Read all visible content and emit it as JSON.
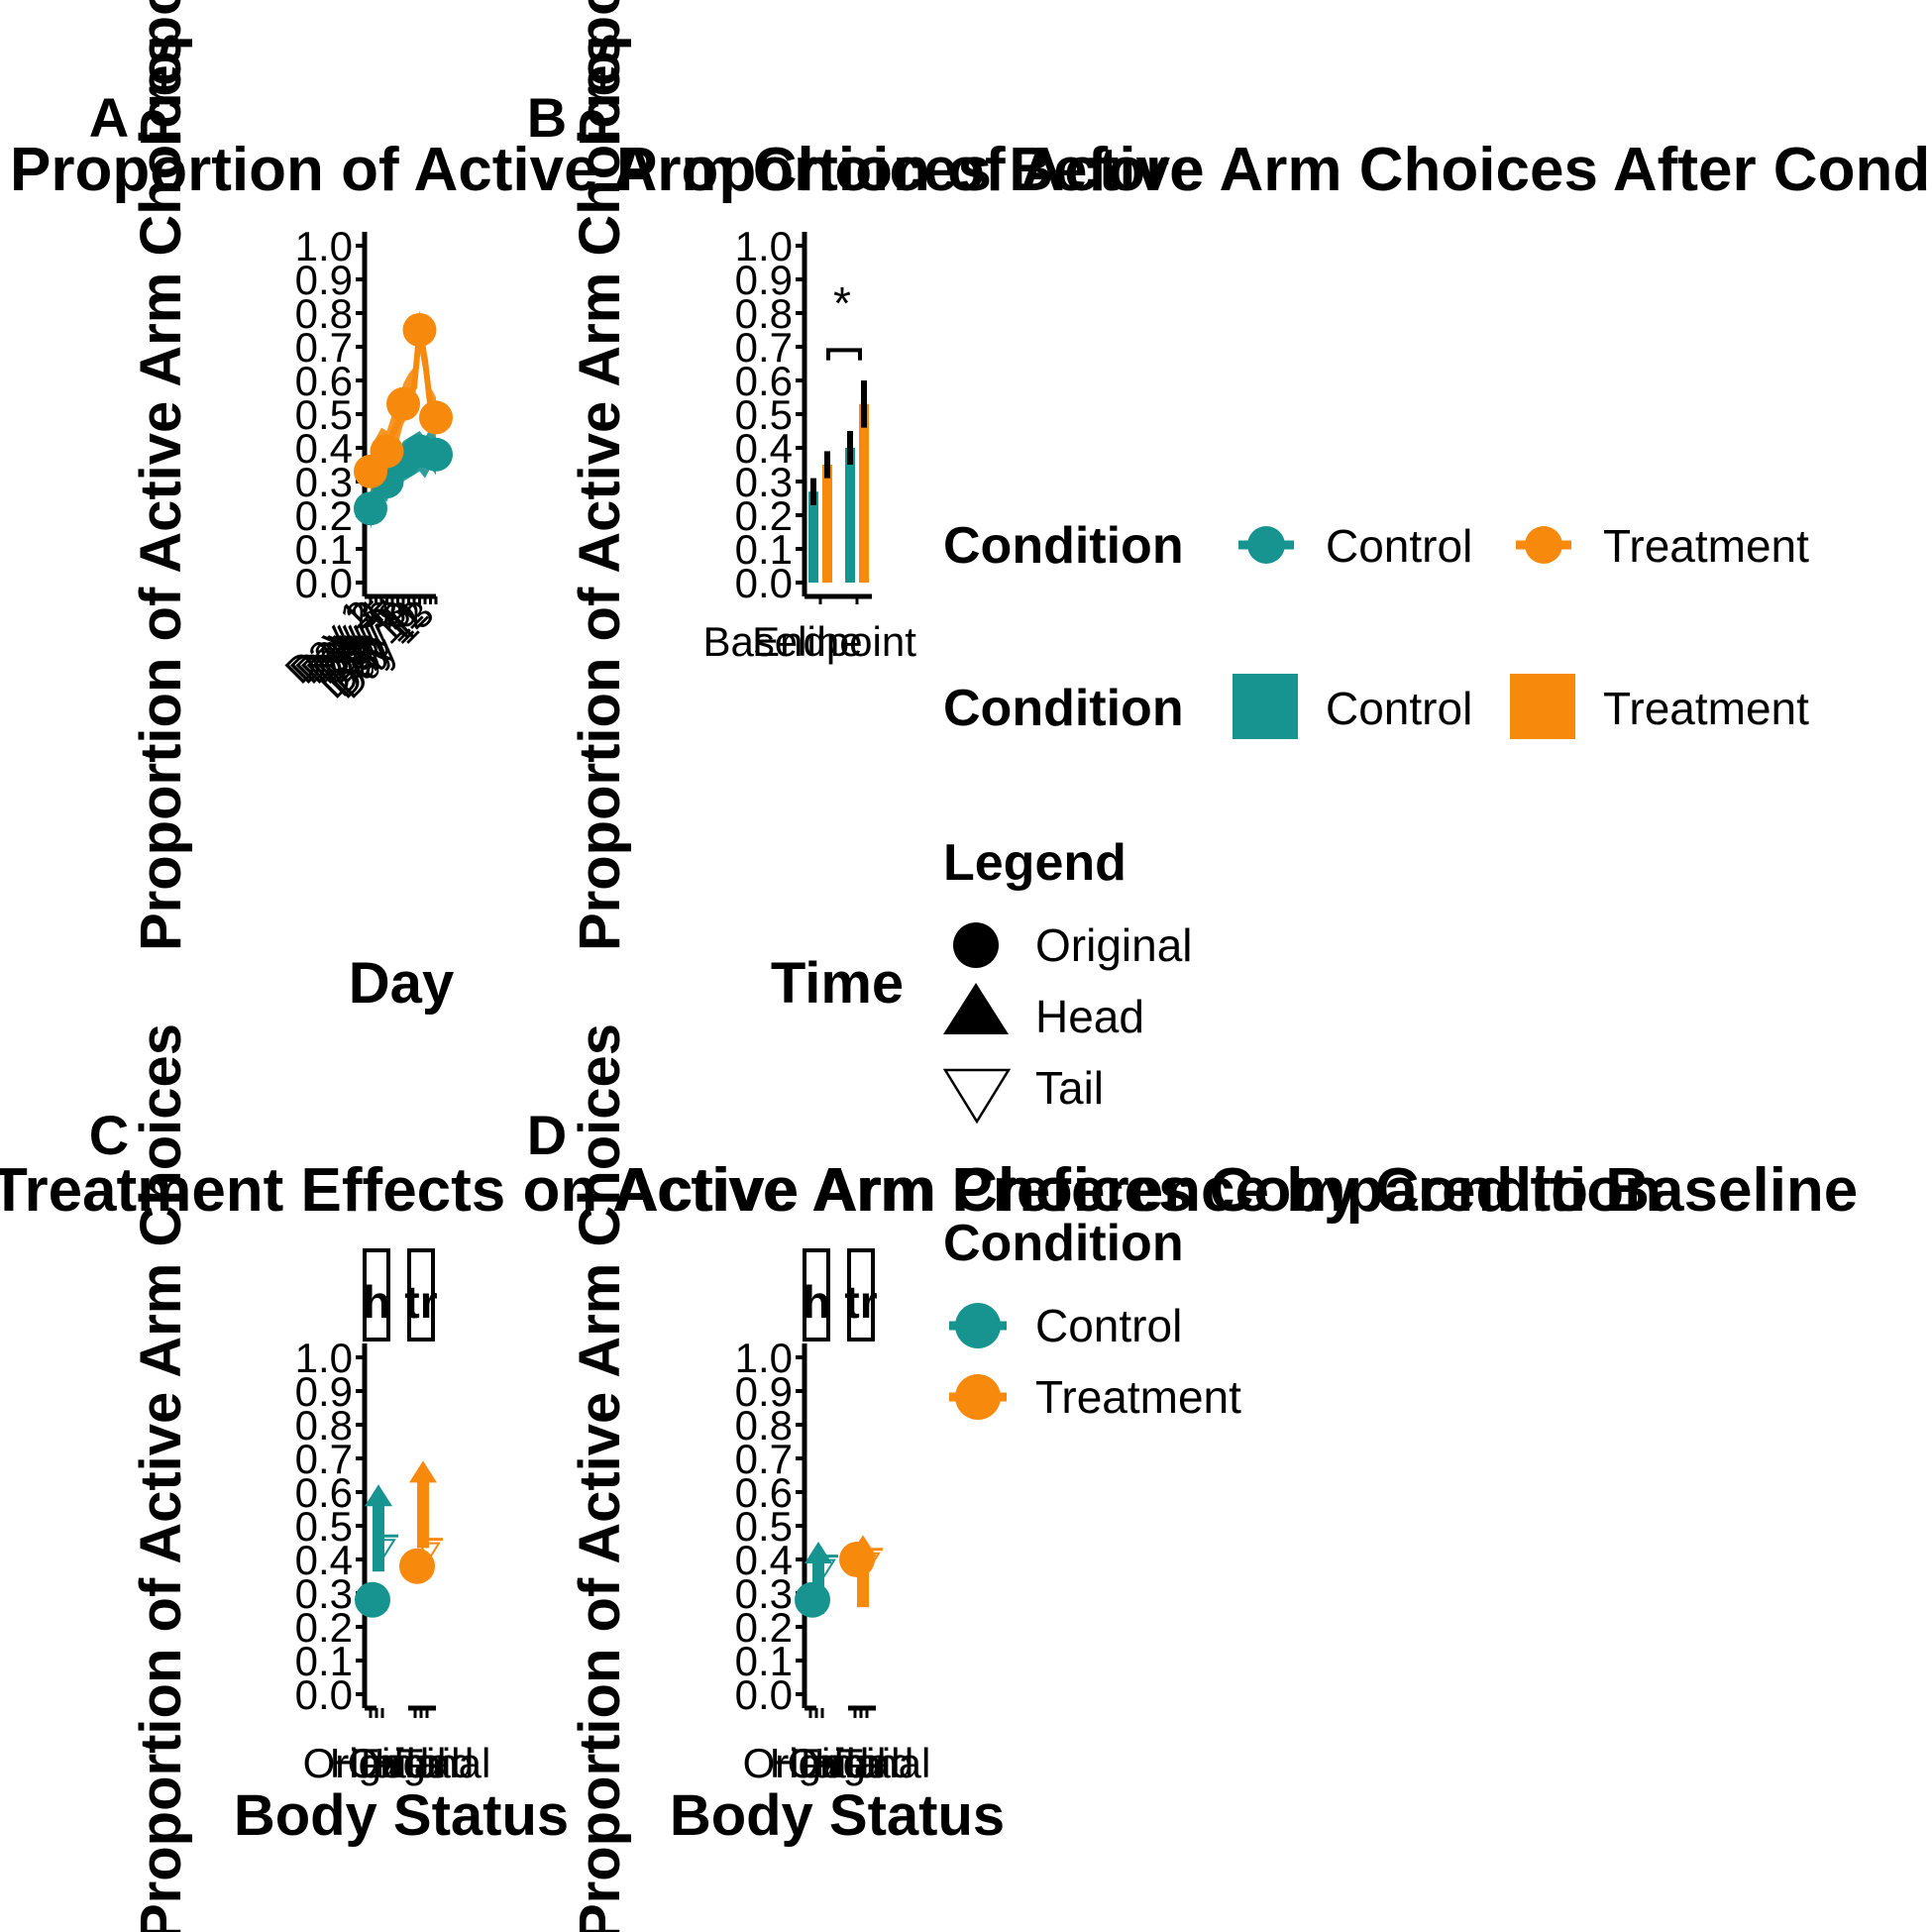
{
  "colors": {
    "control": "#17948F",
    "treatment": "#F7890D",
    "axis": "#000000",
    "background": "#FFFFFF"
  },
  "chart_data": [
    {
      "panel": "A",
      "type": "line",
      "title": "Proportion of Active Arm Choices Before and After Conditioning",
      "xlabel": "Day",
      "ylabel": "Proportion of Active Arm Choices",
      "ylim": [
        0,
        1
      ],
      "yticks": [
        "0.0",
        "0.1",
        "0.2",
        "0.3",
        "0.4",
        "0.5",
        "0.6",
        "0.7",
        "0.8",
        "0.9",
        "1.0"
      ],
      "grid": false,
      "series": [
        {
          "name": "Control",
          "values": [
            0.22,
            0.27,
            0.31,
            0.3,
            0.34,
            0.33,
            0.36,
            0.37,
            0.38,
            0.39,
            0.37,
            0.4,
            0.38
          ]
        },
        {
          "name": "Treatment",
          "values": [
            0.33,
            0.37,
            0.4,
            0.39,
            0.44,
            0.47,
            0.53,
            0.56,
            0.58,
            0.75,
            0.66,
            0.52,
            0.49
          ]
        }
      ]
    },
    {
      "panel": "B",
      "type": "bar",
      "title": "Proportion of Active Arm Choices Before and After Conditioning",
      "xlabel": "Time",
      "ylabel": "Proportion of Active Arm Choices",
      "categories": [
        "Baseline",
        "Endpoint"
      ],
      "ylim": [
        0,
        1
      ],
      "yticks": [
        "0.0",
        "0.1",
        "0.2",
        "0.3",
        "0.4",
        "0.5",
        "0.6",
        "0.7",
        "0.8",
        "0.9",
        "1.0"
      ],
      "series": [
        {
          "name": "Control",
          "values": [
            0.27,
            0.4
          ],
          "errors": [
            0.04,
            0.05
          ]
        },
        {
          "name": "Treatment",
          "values": [
            0.35,
            0.53
          ],
          "errors": [
            0.04,
            0.07
          ]
        }
      ],
      "annotations": [
        {
          "text": "*"
        }
      ]
    },
    {
      "panel": "C",
      "type": "scatter",
      "title": "Treatment Effects on Active Arm Preference by Condition",
      "xlabel": "Body Status",
      "ylabel": "Proportion of Active Arm Choices",
      "ylim": [
        0,
        1
      ],
      "yticks": [
        "0.0",
        "0.1",
        "0.2",
        "0.3",
        "0.4",
        "0.5",
        "0.6",
        "0.7",
        "0.8",
        "0.9",
        "1.0"
      ],
      "facets": [
        "h",
        "tr"
      ],
      "categories": [
        "Original",
        "Head",
        "Tail"
      ],
      "series": [
        {
          "name": "Control",
          "values": [
            0.28,
            0.57,
            0.47
          ]
        },
        {
          "name": "Treatment",
          "values": [
            0.38,
            0.64,
            0.46
          ]
        }
      ]
    },
    {
      "panel": "D",
      "type": "scatter",
      "title": "Active Arm Choices Compared to Baseline",
      "xlabel": "Body Status",
      "ylabel": "Proportion of Active Arm Choices",
      "ylim": [
        0,
        1
      ],
      "yticks": [
        "0.0",
        "0.1",
        "0.2",
        "0.3",
        "0.4",
        "0.5",
        "0.6",
        "0.7",
        "0.8",
        "0.9",
        "1.0"
      ],
      "facets": [
        "h",
        "tr"
      ],
      "categories": [
        "Original",
        "Head",
        "Tail"
      ],
      "series": [
        {
          "name": "Control",
          "values": [
            0.28,
            0.4,
            0.41
          ]
        },
        {
          "name": "Treatment",
          "values": [
            0.4,
            0.42,
            0.43
          ]
        }
      ]
    }
  ],
  "panels": {
    "A": {
      "letter": "A",
      "title_left": "Proportion of Active Arm Choices Before",
      "xlabel": "Day",
      "ylabel": "Proportion of Active Arm Choices",
      "ylabel_top": "Proportion of Active Arm Choi"
    },
    "B": {
      "letter": "B",
      "title_right": "Proportion of Active Arm Choices After Conditioning",
      "xlabel": "Time",
      "ylabel": "Proportion of Active Arm Choices",
      "ylabel_top": "Proportion of Active Arm Choi",
      "star": "*",
      "tick_baseline": "Baseline",
      "tick_endpoint": "Endpoint"
    },
    "C": {
      "letter": "C",
      "title": "Treatment Effects on Active Arm Preference by Condition",
      "xlabel": "Body Status",
      "ylabel": "Proportion of Active Arm Choices",
      "facet1": "h",
      "facet2": "tr"
    },
    "D": {
      "letter": "D",
      "title": "Active Arm Choices Compared to Baseline",
      "xlabel": "Body Status",
      "ylabel": "Proportion of Active Arm Choices",
      "facet1": "h",
      "facet2": "tr"
    }
  },
  "legends": {
    "condition_points": {
      "title": "Condition",
      "items": [
        "Control",
        "Treatment"
      ]
    },
    "condition_fill": {
      "title": "Condition",
      "items": [
        "Control",
        "Treatment"
      ]
    },
    "shape": {
      "title": "Legend",
      "items": [
        "Original",
        "Head",
        "Tail"
      ]
    },
    "condition_vertical": {
      "title": "Condition",
      "items": [
        "Control",
        "Treatment"
      ]
    }
  },
  "tick_labels": {
    "body_status": [
      "Original",
      "Head",
      "Tail"
    ],
    "day_labels": [
      "Day 1",
      "Day 2",
      "Day 3",
      "Day 4",
      "Day 5",
      "Day 6",
      "Day 7",
      "Day 8",
      "Day 9",
      "Day 10",
      "Day 11",
      "Day 12",
      "Day 13"
    ]
  }
}
